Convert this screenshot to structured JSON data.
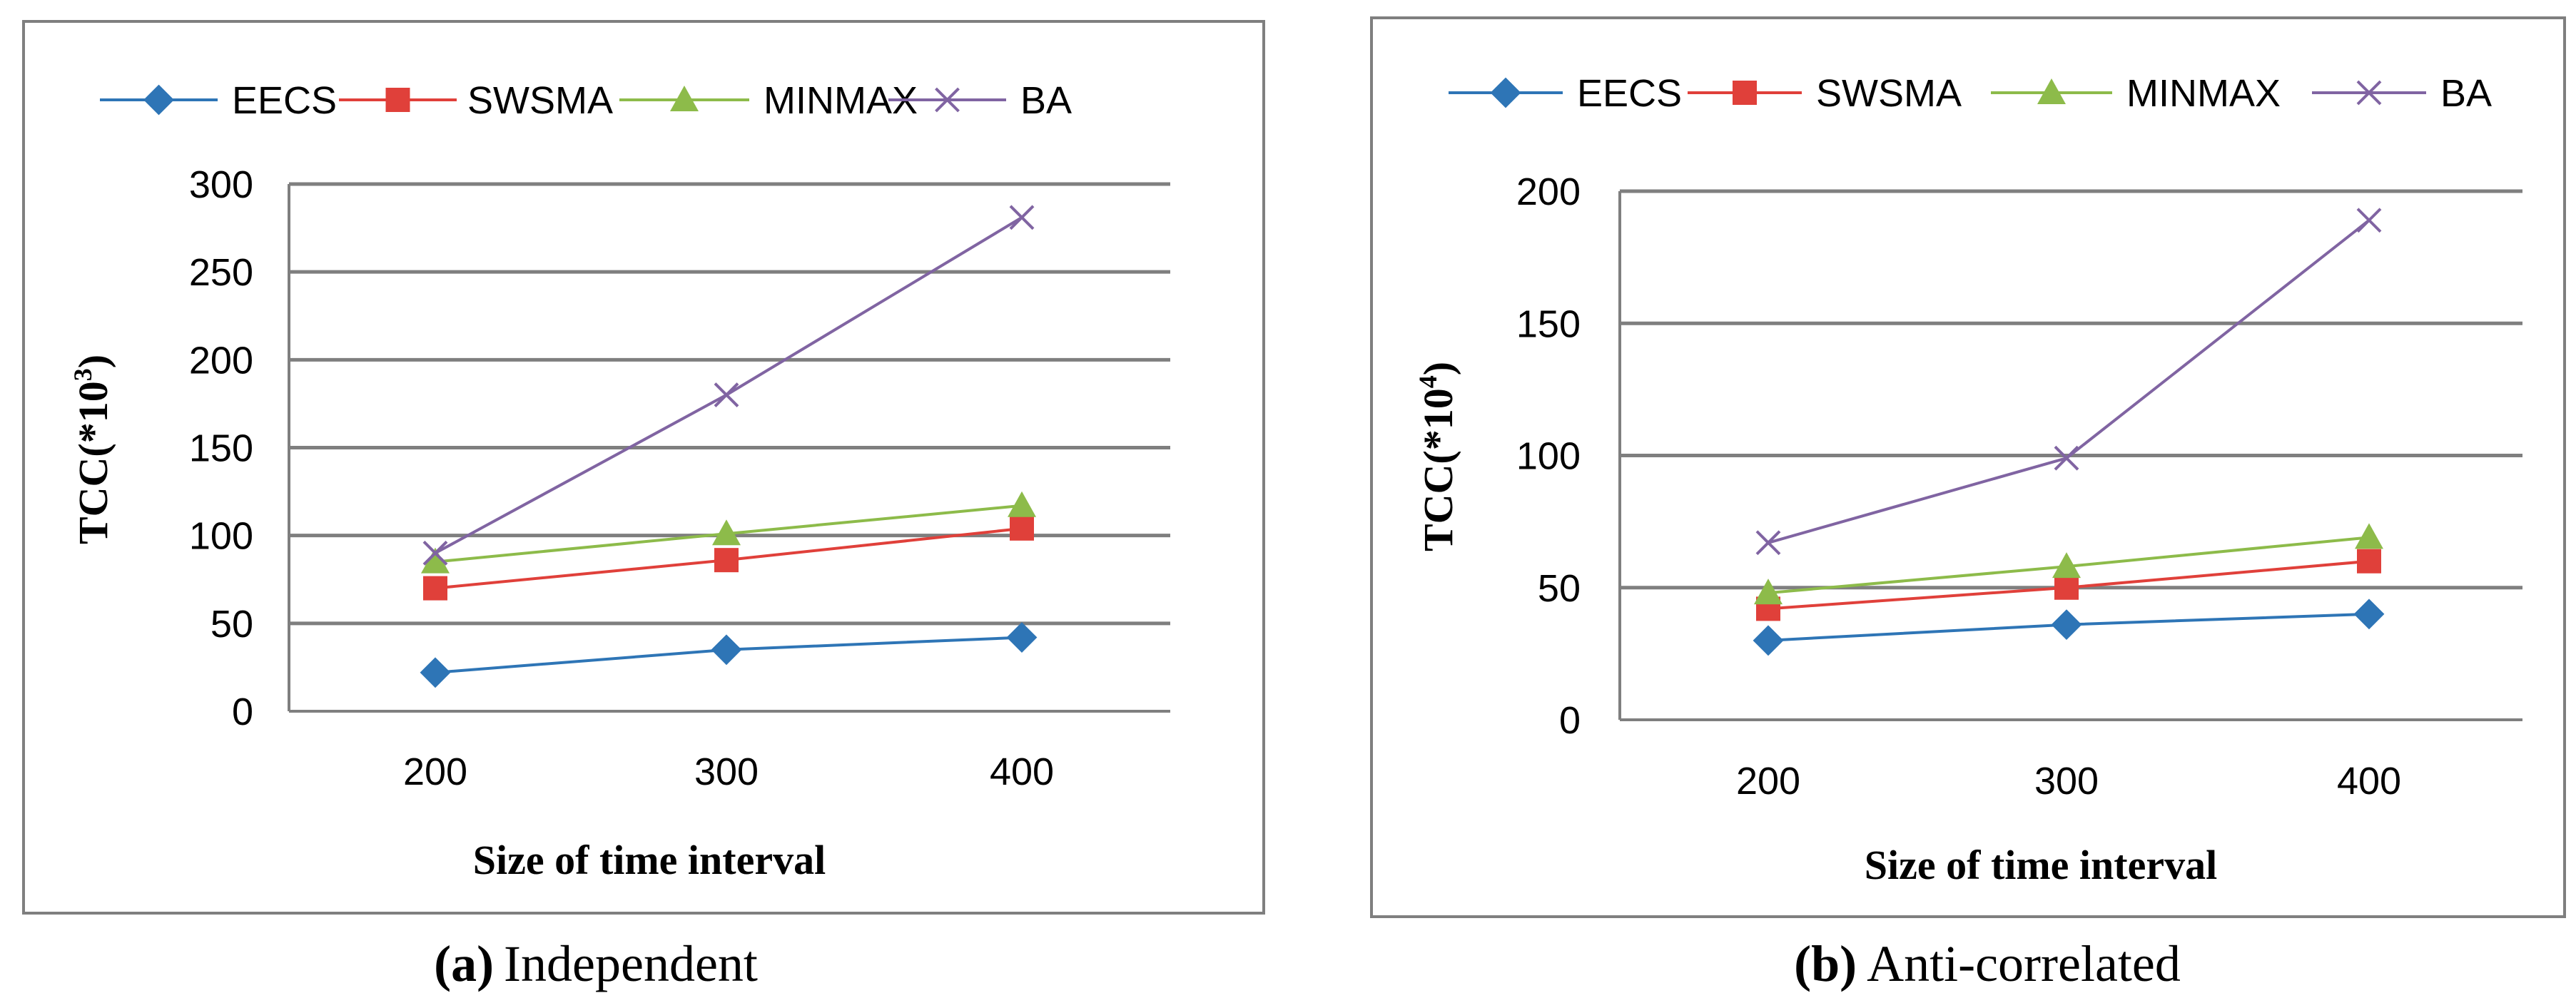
{
  "chart_data": [
    {
      "type": "line",
      "caption_letter": "(a)",
      "caption_text": "Independent",
      "xlabel": "Size of time interval",
      "ylabel_main": "TCC(*10",
      "ylabel_exp": "3",
      "ylabel_close": ")",
      "categories": [
        "200",
        "300",
        "400"
      ],
      "ylim": [
        0,
        300
      ],
      "yticks": [
        0,
        50,
        100,
        150,
        200,
        250,
        300
      ],
      "ytick_labels": [
        "0",
        "50",
        "100",
        "150",
        "200",
        "250",
        "300"
      ],
      "legend_position": "top",
      "grid": true,
      "series": [
        {
          "name": "EECS",
          "marker": "diamond",
          "color": "#2e75b6",
          "values": [
            22,
            35,
            42
          ]
        },
        {
          "name": "SWSMA",
          "marker": "square",
          "color": "#e0403a",
          "values": [
            70,
            86,
            104
          ]
        },
        {
          "name": "MINMAX",
          "marker": "triangle",
          "color": "#8dbb4a",
          "values": [
            85,
            101,
            117
          ]
        },
        {
          "name": "BA",
          "marker": "x",
          "color": "#8064a2",
          "values": [
            90,
            180,
            281
          ]
        }
      ]
    },
    {
      "type": "line",
      "caption_letter": "(b)",
      "caption_text": "Anti-correlated",
      "xlabel": "Size of time interval",
      "ylabel_main": "TCC(*10",
      "ylabel_exp": "4",
      "ylabel_close": ")",
      "categories": [
        "200",
        "300",
        "400"
      ],
      "ylim": [
        0,
        200
      ],
      "yticks": [
        0,
        50,
        100,
        150,
        200
      ],
      "ytick_labels": [
        "0",
        "50",
        "100",
        "150",
        "200"
      ],
      "legend_position": "top",
      "grid": true,
      "series": [
        {
          "name": "EECS",
          "marker": "diamond",
          "color": "#2e75b6",
          "values": [
            30,
            36,
            40
          ]
        },
        {
          "name": "SWSMA",
          "marker": "square",
          "color": "#e0403a",
          "values": [
            42,
            50,
            60
          ]
        },
        {
          "name": "MINMAX",
          "marker": "triangle",
          "color": "#8dbb4a",
          "values": [
            48,
            58,
            69
          ]
        },
        {
          "name": "BA",
          "marker": "x",
          "color": "#8064a2",
          "values": [
            67,
            99,
            189
          ]
        }
      ]
    }
  ]
}
